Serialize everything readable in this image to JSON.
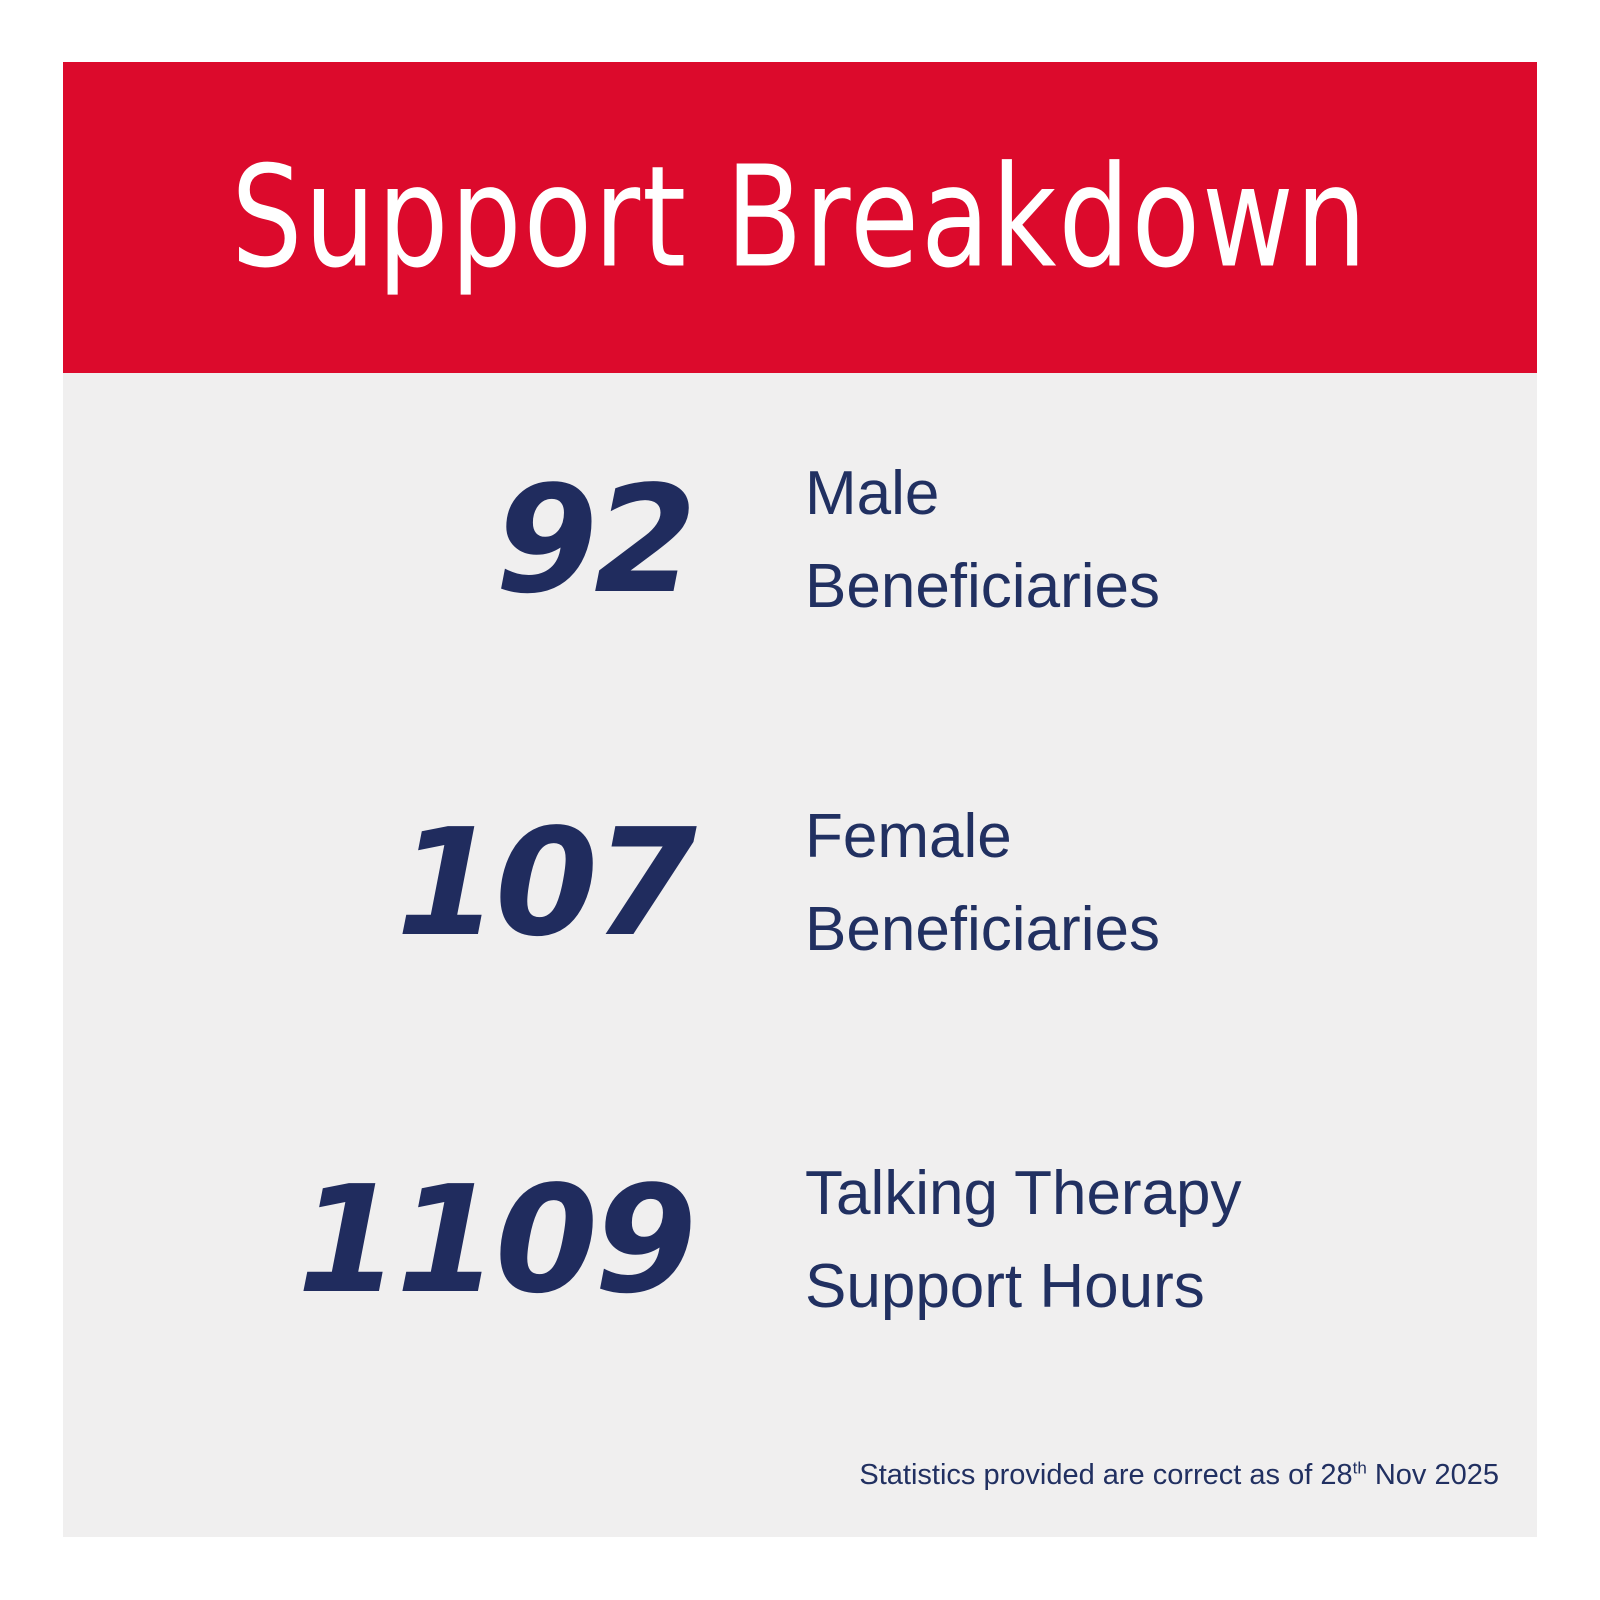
{
  "header": {
    "title": "Support Breakdown"
  },
  "stats": [
    {
      "value": "92",
      "label_lines": [
        "Male",
        "Beneficiaries"
      ]
    },
    {
      "value": "107",
      "label_lines": [
        "Female",
        "Beneficiaries"
      ]
    },
    {
      "value": "1109",
      "label_lines": [
        "Talking Therapy",
        "Support Hours"
      ]
    }
  ],
  "footer": {
    "prefix": "Statistics provided are correct as of 28",
    "superscript": "th",
    "suffix": " Nov 2025"
  },
  "colors": {
    "accent_red": "#DC0A2C",
    "navy_text": "#202C5E",
    "card_background": "#F0EFEF",
    "page_background": "#FFFFFF",
    "title_text": "#FFFFFF"
  },
  "chart_data": {
    "type": "table",
    "title": "Support Breakdown",
    "categories": [
      "Male Beneficiaries",
      "Female Beneficiaries",
      "Talking Therapy Support Hours"
    ],
    "values": [
      92,
      107,
      1109
    ],
    "annotations": [
      "Statistics provided are correct as of 28th Nov 2025"
    ],
    "legend_position": "none",
    "grid": false
  }
}
